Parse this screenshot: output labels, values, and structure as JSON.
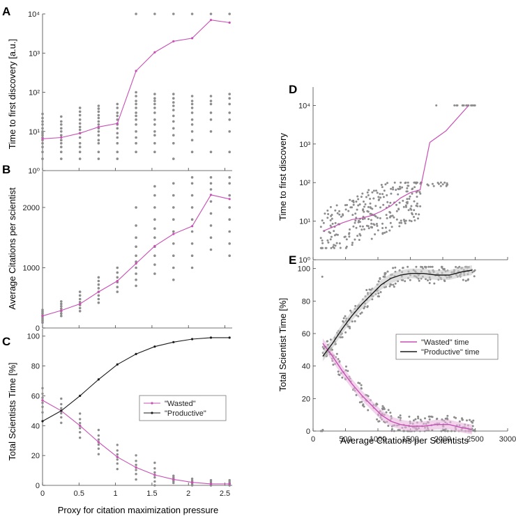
{
  "figure": {
    "background": "#ffffff"
  },
  "colors": {
    "wasted": "#c84fb5",
    "productive": "#1a1a1a",
    "scatter": "#8c8c8c",
    "axis": "#444444"
  },
  "chart_data": [
    {
      "panel": "A",
      "type": "scatter",
      "yscale": "log",
      "ylabel": "Time to first discovery [a.u.]",
      "xlim": [
        0,
        2.6
      ],
      "ylim": [
        1,
        10000
      ],
      "xticks": [
        0,
        0.5,
        1,
        1.5,
        2,
        2.5
      ],
      "xticklabels": [
        "",
        "",
        "",
        "",
        "",
        ""
      ],
      "yticks": [
        1,
        10,
        100,
        1000,
        10000
      ],
      "yticklabels": [
        "10⁰",
        "10¹",
        "10²",
        "10³",
        "10⁴"
      ],
      "x_groups": [
        0,
        0.256,
        0.513,
        0.769,
        1.026,
        1.282,
        1.538,
        1.795,
        2.051,
        2.308,
        2.564
      ],
      "scatter_rows": [
        [
          2,
          3,
          4,
          5,
          6,
          7,
          8,
          9,
          10,
          12,
          15,
          18,
          22,
          28
        ],
        [
          2,
          3,
          4,
          5,
          6,
          8,
          10,
          12,
          15,
          18,
          24
        ],
        [
          2,
          3,
          4,
          5,
          7,
          9,
          11,
          13,
          16,
          20,
          26,
          32,
          40
        ],
        [
          2,
          3,
          5,
          6,
          8,
          10,
          12,
          15,
          18,
          22,
          26,
          32,
          38,
          45
        ],
        [
          2,
          3,
          5,
          7,
          9,
          12,
          15,
          20,
          25,
          30,
          40,
          50
        ],
        [
          3,
          5,
          7,
          10,
          15,
          20,
          25,
          30,
          40,
          50,
          60,
          80,
          100,
          10000
        ],
        [
          3,
          5,
          8,
          10,
          15,
          20,
          30,
          40,
          50,
          60,
          70,
          90,
          10000
        ],
        [
          2,
          5,
          8,
          12,
          18,
          25,
          35,
          45,
          55,
          70,
          90,
          10000
        ],
        [
          3,
          6,
          10,
          15,
          20,
          30,
          40,
          50,
          60,
          80,
          10000
        ],
        [
          3,
          10,
          20,
          30,
          50,
          60,
          80,
          10000
        ],
        [
          3,
          10,
          20,
          30,
          50,
          70,
          90,
          10000
        ]
      ],
      "series": [
        {
          "name": "mean",
          "color": "#c84fb5",
          "values": [
            6.5,
            7,
            9,
            13,
            16,
            350,
            1050,
            2000,
            2400,
            7000,
            6000
          ]
        }
      ]
    },
    {
      "panel": "B",
      "type": "scatter",
      "ylabel": "Average Citations per scientist",
      "xlim": [
        0,
        2.6
      ],
      "ylim": [
        0,
        2600
      ],
      "xticks": [
        0,
        0.5,
        1,
        1.5,
        2,
        2.5
      ],
      "xticklabels": [
        "",
        "",
        "",
        "",
        "",
        ""
      ],
      "yticks": [
        0,
        1000,
        2000
      ],
      "yticklabels": [
        "0",
        "1000",
        "2000"
      ],
      "x_groups": [
        0,
        0.256,
        0.513,
        0.769,
        1.026,
        1.282,
        1.538,
        1.795,
        2.051,
        2.308,
        2.564
      ],
      "scatter_rows": [
        [
          90,
          120,
          150,
          180,
          210,
          240,
          270,
          300
        ],
        [
          200,
          240,
          280,
          320,
          360,
          400,
          440
        ],
        [
          280,
          330,
          380,
          430,
          480,
          540,
          600
        ],
        [
          420,
          480,
          540,
          600,
          660,
          720,
          780,
          840
        ],
        [
          600,
          680,
          760,
          840,
          920,
          1000
        ],
        [
          700,
          800,
          900,
          1000,
          1100,
          1200,
          1350,
          1500,
          1700,
          2000
        ],
        [
          900,
          1050,
          1200,
          1350,
          1500,
          1650,
          1800,
          2000,
          2200,
          2350
        ],
        [
          800,
          1000,
          1200,
          1400,
          1600,
          1800,
          2000,
          2200,
          2400
        ],
        [
          1000,
          1200,
          1400,
          1600,
          1800,
          2000,
          2200,
          2400,
          2500
        ],
        [
          1300,
          1500,
          1700,
          1900,
          2100,
          2300,
          2400,
          2500
        ],
        [
          1200,
          1400,
          1600,
          1800,
          2000,
          2200,
          2400,
          2500
        ]
      ],
      "series": [
        {
          "name": "mean",
          "color": "#c84fb5",
          "values": [
            200,
            290,
            400,
            600,
            780,
            1070,
            1360,
            1560,
            1690,
            2210,
            2140
          ]
        }
      ]
    },
    {
      "panel": "C",
      "type": "line",
      "ylabel": "Total Scientists Time [%]",
      "xlabel": "Proxy for citation maximization pressure",
      "xlim": [
        0,
        2.6
      ],
      "ylim": [
        0,
        105
      ],
      "xticks": [
        0,
        0.5,
        1,
        1.5,
        2,
        2.5
      ],
      "xticklabels": [
        "0",
        "0.5",
        "1",
        "1.5",
        "2",
        "2.5"
      ],
      "yticks": [
        0,
        20,
        40,
        60,
        80,
        100
      ],
      "yticklabels": [
        "0",
        "20",
        "40",
        "60",
        "80",
        "100"
      ],
      "x": [
        0,
        0.256,
        0.513,
        0.769,
        1.026,
        1.282,
        1.538,
        1.795,
        2.051,
        2.308,
        2.564
      ],
      "scatter_center": "wasted",
      "series": [
        {
          "name": "\"Wasted\"",
          "color": "#c84fb5",
          "values": [
            57,
            50,
            40,
            29,
            19,
            12,
            7,
            4,
            2,
            1,
            1
          ]
        },
        {
          "name": "\"Productive\"",
          "color": "#1a1a1a",
          "values": [
            43,
            50,
            60,
            71,
            81,
            88,
            93,
            96,
            98,
            99,
            99
          ]
        }
      ],
      "legend": {
        "position": "middle-right",
        "entries": [
          "\"Wasted\"",
          "\"Productive\""
        ]
      }
    },
    {
      "panel": "D",
      "type": "scatter",
      "yscale": "log",
      "ylabel": "Time to first discovery",
      "xlim": [
        0,
        3000
      ],
      "ylim": [
        1,
        30000
      ],
      "xticks": [
        0,
        500,
        1000,
        1500,
        2000,
        2500,
        3000
      ],
      "xticklabels": [
        "",
        "",
        "",
        "",
        "",
        "",
        ""
      ],
      "yticks": [
        1,
        10,
        100,
        1000,
        10000
      ],
      "yticklabels": [
        "10⁰",
        "10¹",
        "10²",
        "10³",
        "10⁴"
      ],
      "series": [
        {
          "name": "mean",
          "color": "#c84fb5",
          "x": [
            150,
            300,
            450,
            600,
            750,
            900,
            1050,
            1200,
            1350,
            1500,
            1650,
            1800,
            2050,
            2400
          ],
          "values": [
            5.5,
            7,
            9,
            11,
            12,
            14,
            18,
            25,
            40,
            55,
            65,
            1100,
            2200,
            10000
          ]
        }
      ]
    },
    {
      "panel": "E",
      "type": "line",
      "ylabel": "Total Scientist Time [%]",
      "xlabel": "Average Citations per Scientists",
      "xlim": [
        0,
        3000
      ],
      "ylim": [
        0,
        105
      ],
      "xticks": [
        0,
        500,
        1000,
        1500,
        2000,
        2500,
        3000
      ],
      "xticklabels": [
        "0",
        "500",
        "1000",
        "1500",
        "2000",
        "2500",
        "3000"
      ],
      "yticks": [
        0,
        20,
        40,
        60,
        80,
        100
      ],
      "yticklabels": [
        "0",
        "20",
        "40",
        "60",
        "80",
        "100"
      ],
      "series": [
        {
          "name": "\"Wasted\" time",
          "color": "#c84fb5",
          "x": [
            150,
            300,
            450,
            600,
            750,
            900,
            1050,
            1200,
            1350,
            1500,
            1700,
            1900,
            2100,
            2300,
            2450
          ],
          "values": [
            54,
            46,
            37,
            29,
            22,
            16,
            10,
            6,
            4,
            3,
            3,
            4,
            4,
            2,
            1
          ]
        },
        {
          "name": "\"Productive\" time",
          "color": "#1a1a1a",
          "x": [
            150,
            300,
            450,
            600,
            750,
            900,
            1050,
            1200,
            1350,
            1500,
            1700,
            1900,
            2100,
            2300,
            2450
          ],
          "values": [
            46,
            54,
            63,
            71,
            78,
            84,
            90,
            94,
            96,
            97,
            97,
            96,
            96,
            98,
            99
          ]
        }
      ],
      "legend": {
        "position": "middle-right",
        "entries": [
          "\"Wasted\" time",
          "\"Productive\" time"
        ]
      }
    }
  ]
}
